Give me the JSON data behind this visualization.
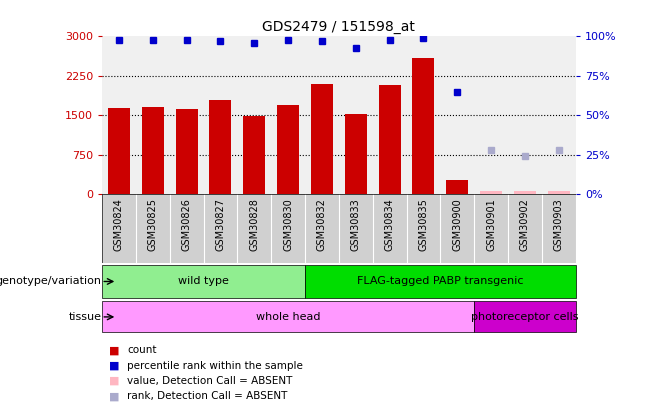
{
  "title": "GDS2479 / 151598_at",
  "samples": [
    "GSM30824",
    "GSM30825",
    "GSM30826",
    "GSM30827",
    "GSM30828",
    "GSM30830",
    "GSM30832",
    "GSM30833",
    "GSM30834",
    "GSM30835",
    "GSM30900",
    "GSM30901",
    "GSM30902",
    "GSM30903"
  ],
  "count_values": [
    1650,
    1660,
    1630,
    1800,
    1480,
    1700,
    2100,
    1530,
    2080,
    2600,
    280,
    60,
    70,
    65
  ],
  "percentile_rank": [
    98,
    98,
    98,
    97,
    96,
    98,
    97,
    93,
    98,
    99,
    65,
    null,
    null,
    null
  ],
  "absent_value": [
    null,
    null,
    null,
    null,
    null,
    null,
    null,
    null,
    null,
    null,
    null,
    55,
    60,
    58
  ],
  "absent_rank": [
    null,
    null,
    null,
    null,
    null,
    null,
    null,
    null,
    null,
    null,
    null,
    28,
    24,
    28
  ],
  "detection_call_absent": [
    false,
    false,
    false,
    false,
    false,
    false,
    false,
    false,
    false,
    false,
    false,
    true,
    true,
    true
  ],
  "genotype_groups": [
    {
      "label": "wild type",
      "start": 0,
      "end": 6,
      "color": "#90EE90"
    },
    {
      "label": "FLAG-tagged PABP transgenic",
      "start": 6,
      "end": 14,
      "color": "#00DD00"
    }
  ],
  "tissue_groups": [
    {
      "label": "whole head",
      "start": 0,
      "end": 11,
      "color": "#FF99FF"
    },
    {
      "label": "photoreceptor cells",
      "start": 11,
      "end": 14,
      "color": "#CC00CC"
    }
  ],
  "ylim_left": [
    0,
    3000
  ],
  "ylim_right": [
    0,
    100
  ],
  "yticks_left": [
    0,
    750,
    1500,
    2250,
    3000
  ],
  "yticks_right": [
    0,
    25,
    50,
    75,
    100
  ],
  "bar_color": "#CC0000",
  "absent_bar_color": "#FFB6C1",
  "dot_color": "#0000CC",
  "absent_dot_color": "#AAAACC",
  "background_color": "#ffffff",
  "plot_bg_color": "#f0f0f0",
  "xticklabel_bg": "#d0d0d0",
  "legend_items": [
    {
      "color": "#CC0000",
      "label": "count"
    },
    {
      "color": "#0000CC",
      "label": "percentile rank within the sample"
    },
    {
      "color": "#FFB6C1",
      "label": "value, Detection Call = ABSENT"
    },
    {
      "color": "#AAAACC",
      "label": "rank, Detection Call = ABSENT"
    }
  ],
  "genotype_label": "genotype/variation",
  "tissue_label": "tissue",
  "ylabel_left_color": "#CC0000",
  "ylabel_right_color": "#0000CC"
}
